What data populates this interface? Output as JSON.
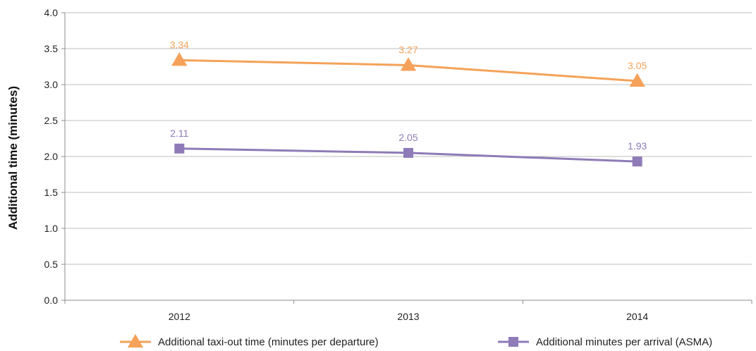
{
  "chart_data": {
    "type": "line",
    "categories": [
      "2012",
      "2013",
      "2014"
    ],
    "series": [
      {
        "name": "Additional taxi-out time (minutes per departure)",
        "values": [
          3.34,
          3.27,
          3.05
        ],
        "labels": [
          "3.34",
          "3.27",
          "3.05"
        ],
        "color": "#F4A259",
        "marker": "triangle"
      },
      {
        "name": "Additional minutes per arrival (ASMA)",
        "values": [
          2.11,
          2.05,
          1.93
        ],
        "labels": [
          "2.11",
          "2.05",
          "1.93"
        ],
        "color": "#8E7BB8",
        "marker": "square"
      }
    ],
    "title": "",
    "xlabel": "",
    "ylabel": "Additional time (minutes)",
    "ylim": [
      0,
      4
    ],
    "yticks": [
      "0.0",
      "0.5",
      "1.0",
      "1.5",
      "2.0",
      "2.5",
      "3.0",
      "3.5",
      "4.0"
    ],
    "grid": true,
    "legend": "bottom",
    "colors": {
      "grid": "#BFBFBF",
      "axis": "#8C8C8C"
    }
  }
}
